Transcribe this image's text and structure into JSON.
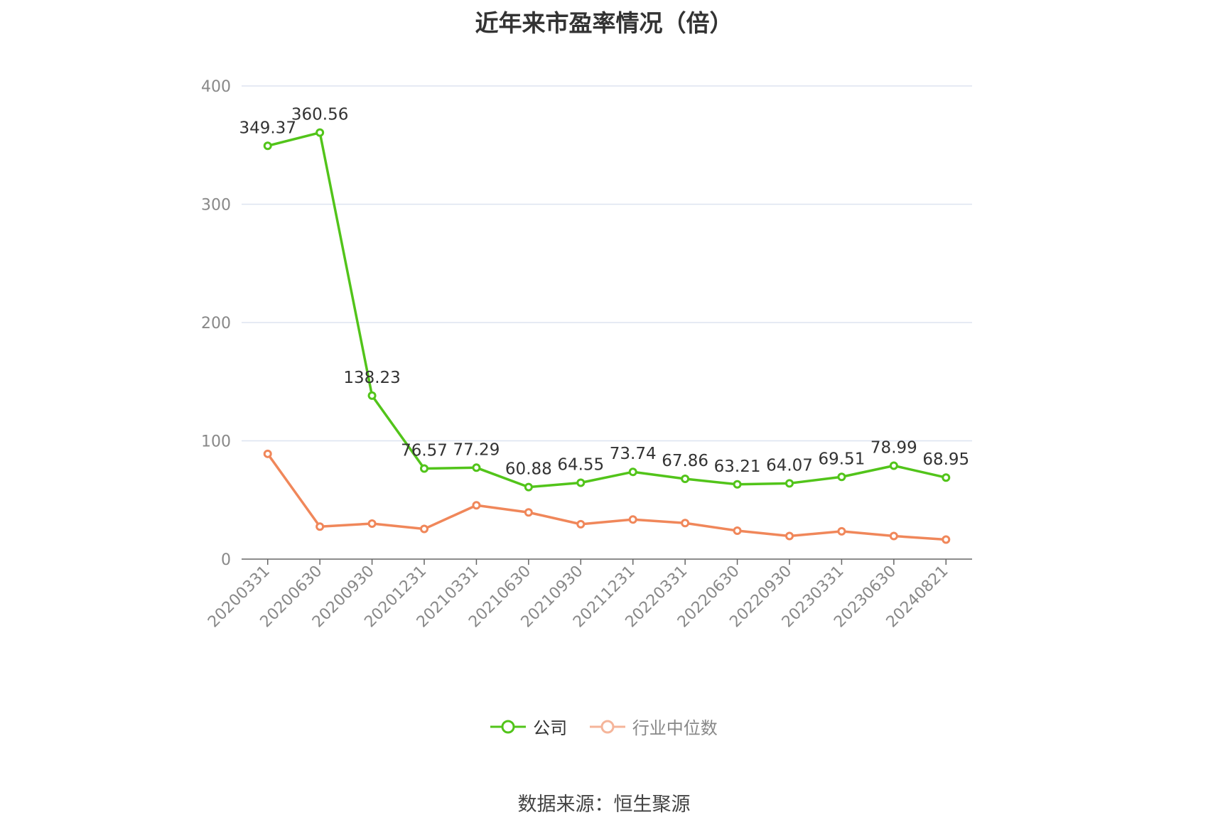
{
  "chart_data": {
    "type": "line",
    "title": "近年来市盈率情况（倍）",
    "categories": [
      "20200331",
      "20200630",
      "20200930",
      "20201231",
      "20210331",
      "20210630",
      "20210930",
      "20211231",
      "20220331",
      "20220630",
      "20220930",
      "20230331",
      "20230630",
      "20240821"
    ],
    "series": [
      {
        "name": "公司",
        "color": "#52c41a",
        "values": [
          349.37,
          360.56,
          138.23,
          76.57,
          77.29,
          60.88,
          64.55,
          73.74,
          67.86,
          63.21,
          64.07,
          69.51,
          78.99,
          68.95
        ],
        "show_labels": true
      },
      {
        "name": "行业中位数",
        "color": "#f0875a",
        "values": [
          89.0,
          27.5,
          30.0,
          25.5,
          45.5,
          39.5,
          29.5,
          33.5,
          30.5,
          24.0,
          19.5,
          23.5,
          19.5,
          16.5
        ],
        "show_labels": false
      }
    ],
    "ylim": [
      0,
      400
    ],
    "yticks": [
      0,
      100,
      200,
      300,
      400
    ],
    "xlabel": "",
    "ylabel": "",
    "grid": true,
    "legend_position": "bottom"
  },
  "legend": {
    "company": "公司",
    "industry": "行业中位数"
  },
  "colors": {
    "company": "#52c41a",
    "industry": "#f0875a",
    "industry_legend": "#f5b59a",
    "grid": "#dde3f0",
    "axis": "#666666"
  },
  "source": "数据来源：恒生聚源"
}
